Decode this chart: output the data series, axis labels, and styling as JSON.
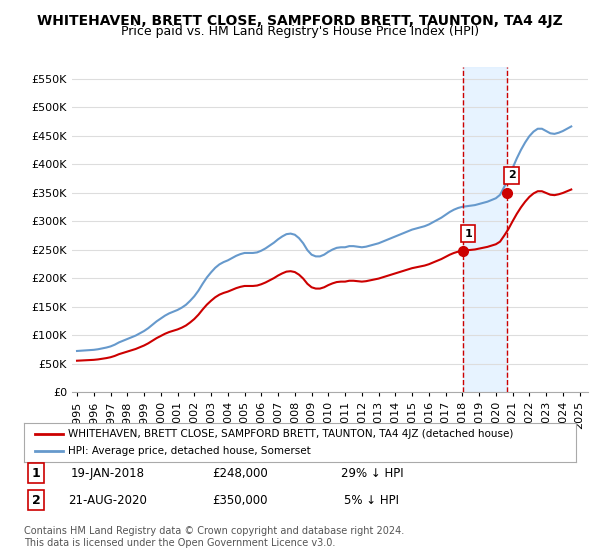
{
  "title": "WHITEHAVEN, BRETT CLOSE, SAMPFORD BRETT, TAUNTON, TA4 4JZ",
  "subtitle": "Price paid vs. HM Land Registry's House Price Index (HPI)",
  "ylabel_ticks": [
    "£0",
    "£50K",
    "£100K",
    "£150K",
    "£200K",
    "£250K",
    "£300K",
    "£350K",
    "£400K",
    "£450K",
    "£500K",
    "£550K"
  ],
  "ytick_values": [
    0,
    50000,
    100000,
    150000,
    200000,
    250000,
    300000,
    350000,
    400000,
    450000,
    500000,
    550000
  ],
  "ylim": [
    0,
    570000
  ],
  "xlim_start": 1995.0,
  "xlim_end": 2025.5,
  "x_years": [
    1995,
    1996,
    1997,
    1998,
    1999,
    2000,
    2001,
    2002,
    2003,
    2004,
    2005,
    2006,
    2007,
    2008,
    2009,
    2010,
    2011,
    2012,
    2013,
    2014,
    2015,
    2016,
    2017,
    2018,
    2019,
    2020,
    2021,
    2022,
    2023,
    2024,
    2025
  ],
  "hpi_x": [
    1995.0,
    1995.25,
    1995.5,
    1995.75,
    1996.0,
    1996.25,
    1996.5,
    1996.75,
    1997.0,
    1997.25,
    1997.5,
    1997.75,
    1998.0,
    1998.25,
    1998.5,
    1998.75,
    1999.0,
    1999.25,
    1999.5,
    1999.75,
    2000.0,
    2000.25,
    2000.5,
    2000.75,
    2001.0,
    2001.25,
    2001.5,
    2001.75,
    2002.0,
    2002.25,
    2002.5,
    2002.75,
    2003.0,
    2003.25,
    2003.5,
    2003.75,
    2004.0,
    2004.25,
    2004.5,
    2004.75,
    2005.0,
    2005.25,
    2005.5,
    2005.75,
    2006.0,
    2006.25,
    2006.5,
    2006.75,
    2007.0,
    2007.25,
    2007.5,
    2007.75,
    2008.0,
    2008.25,
    2008.5,
    2008.75,
    2009.0,
    2009.25,
    2009.5,
    2009.75,
    2010.0,
    2010.25,
    2010.5,
    2010.75,
    2011.0,
    2011.25,
    2011.5,
    2011.75,
    2012.0,
    2012.25,
    2012.5,
    2012.75,
    2013.0,
    2013.25,
    2013.5,
    2013.75,
    2014.0,
    2014.25,
    2014.5,
    2014.75,
    2015.0,
    2015.25,
    2015.5,
    2015.75,
    2016.0,
    2016.25,
    2016.5,
    2016.75,
    2017.0,
    2017.25,
    2017.5,
    2017.75,
    2018.0,
    2018.25,
    2018.5,
    2018.75,
    2019.0,
    2019.25,
    2019.5,
    2019.75,
    2020.0,
    2020.25,
    2020.5,
    2020.75,
    2021.0,
    2021.25,
    2021.5,
    2021.75,
    2022.0,
    2022.25,
    2022.5,
    2022.75,
    2023.0,
    2023.25,
    2023.5,
    2023.75,
    2024.0,
    2024.25,
    2024.5
  ],
  "hpi_y": [
    72000,
    72500,
    73000,
    73500,
    74000,
    75000,
    76500,
    78000,
    80000,
    83000,
    87000,
    90000,
    93000,
    96000,
    99000,
    103000,
    107000,
    112000,
    118000,
    124000,
    129000,
    134000,
    138000,
    141000,
    144000,
    148000,
    153000,
    160000,
    168000,
    178000,
    190000,
    201000,
    210000,
    218000,
    224000,
    228000,
    231000,
    235000,
    239000,
    242000,
    244000,
    244000,
    244000,
    245000,
    248000,
    252000,
    257000,
    262000,
    268000,
    273000,
    277000,
    278000,
    276000,
    270000,
    261000,
    249000,
    241000,
    238000,
    238000,
    241000,
    246000,
    250000,
    253000,
    254000,
    254000,
    256000,
    256000,
    255000,
    254000,
    255000,
    257000,
    259000,
    261000,
    264000,
    267000,
    270000,
    273000,
    276000,
    279000,
    282000,
    285000,
    287000,
    289000,
    291000,
    294000,
    298000,
    302000,
    306000,
    311000,
    316000,
    320000,
    323000,
    325000,
    326000,
    327000,
    328000,
    330000,
    332000,
    334000,
    337000,
    340000,
    346000,
    360000,
    375000,
    393000,
    410000,
    425000,
    438000,
    449000,
    457000,
    462000,
    462000,
    458000,
    454000,
    453000,
    455000,
    458000,
    462000,
    466000
  ],
  "sale1_x": 2018.05,
  "sale1_y": 248000,
  "sale1_label": "1",
  "sale2_x": 2020.64,
  "sale2_y": 350000,
  "sale2_label": "2",
  "vline1_x": 2018.05,
  "vline2_x": 2020.64,
  "legend1_label": "WHITEHAVEN, BRETT CLOSE, SAMPFORD BRETT, TAUNTON, TA4 4JZ (detached house)",
  "legend2_label": "HPI: Average price, detached house, Somerset",
  "row1_num": "1",
  "row1_date": "19-JAN-2018",
  "row1_price": "£248,000",
  "row1_hpi": "29% ↓ HPI",
  "row2_num": "2",
  "row2_date": "21-AUG-2020",
  "row2_price": "£350,000",
  "row2_hpi": "5% ↓ HPI",
  "footnote": "Contains HM Land Registry data © Crown copyright and database right 2024.\nThis data is licensed under the Open Government Licence v3.0.",
  "sale_color": "#cc0000",
  "hpi_color": "#6699cc",
  "vline_color": "#cc0000",
  "highlight_color": "#ddeeff",
  "bg_color": "#ffffff",
  "grid_color": "#dddddd",
  "title_fontsize": 10,
  "subtitle_fontsize": 9,
  "tick_fontsize": 8
}
